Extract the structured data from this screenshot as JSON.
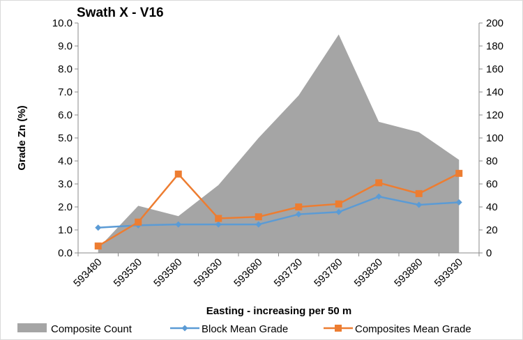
{
  "chart_data": {
    "type": "line",
    "title": "Swath X - V16",
    "xlabel": "Easting - increasing per 50 m",
    "ylabel": "Grade Zn (%)",
    "categories": [
      "593480",
      "593530",
      "593580",
      "593630",
      "593680",
      "593730",
      "593780",
      "593830",
      "593880",
      "593930"
    ],
    "ylim": [
      0,
      10
    ],
    "ylim_secondary": [
      0,
      200
    ],
    "y_ticks": [
      "0.0",
      "1.0",
      "2.0",
      "3.0",
      "4.0",
      "5.0",
      "6.0",
      "7.0",
      "8.0",
      "9.0",
      "10.0"
    ],
    "y2_ticks": [
      "0",
      "20",
      "40",
      "60",
      "80",
      "100",
      "120",
      "140",
      "160",
      "180",
      "200"
    ],
    "grid": false,
    "legend_position": "bottom",
    "series": [
      {
        "name": "Composite Count",
        "type": "area",
        "axis": "secondary",
        "color": "#a5a5a5",
        "values": [
          4,
          41,
          32,
          59,
          100,
          137,
          190,
          114,
          105,
          81
        ]
      },
      {
        "name": "Block Mean Grade",
        "type": "line",
        "axis": "primary",
        "marker": "diamond",
        "color": "#5b9bd5",
        "values": [
          1.1,
          1.2,
          1.24,
          1.24,
          1.24,
          1.68,
          1.78,
          2.45,
          2.09,
          2.2
        ]
      },
      {
        "name": "Composites Mean Grade",
        "type": "line",
        "axis": "primary",
        "marker": "square",
        "color": "#ed7d31",
        "values": [
          0.3,
          1.34,
          3.43,
          1.5,
          1.57,
          2.0,
          2.13,
          3.05,
          2.58,
          3.46
        ]
      }
    ]
  }
}
